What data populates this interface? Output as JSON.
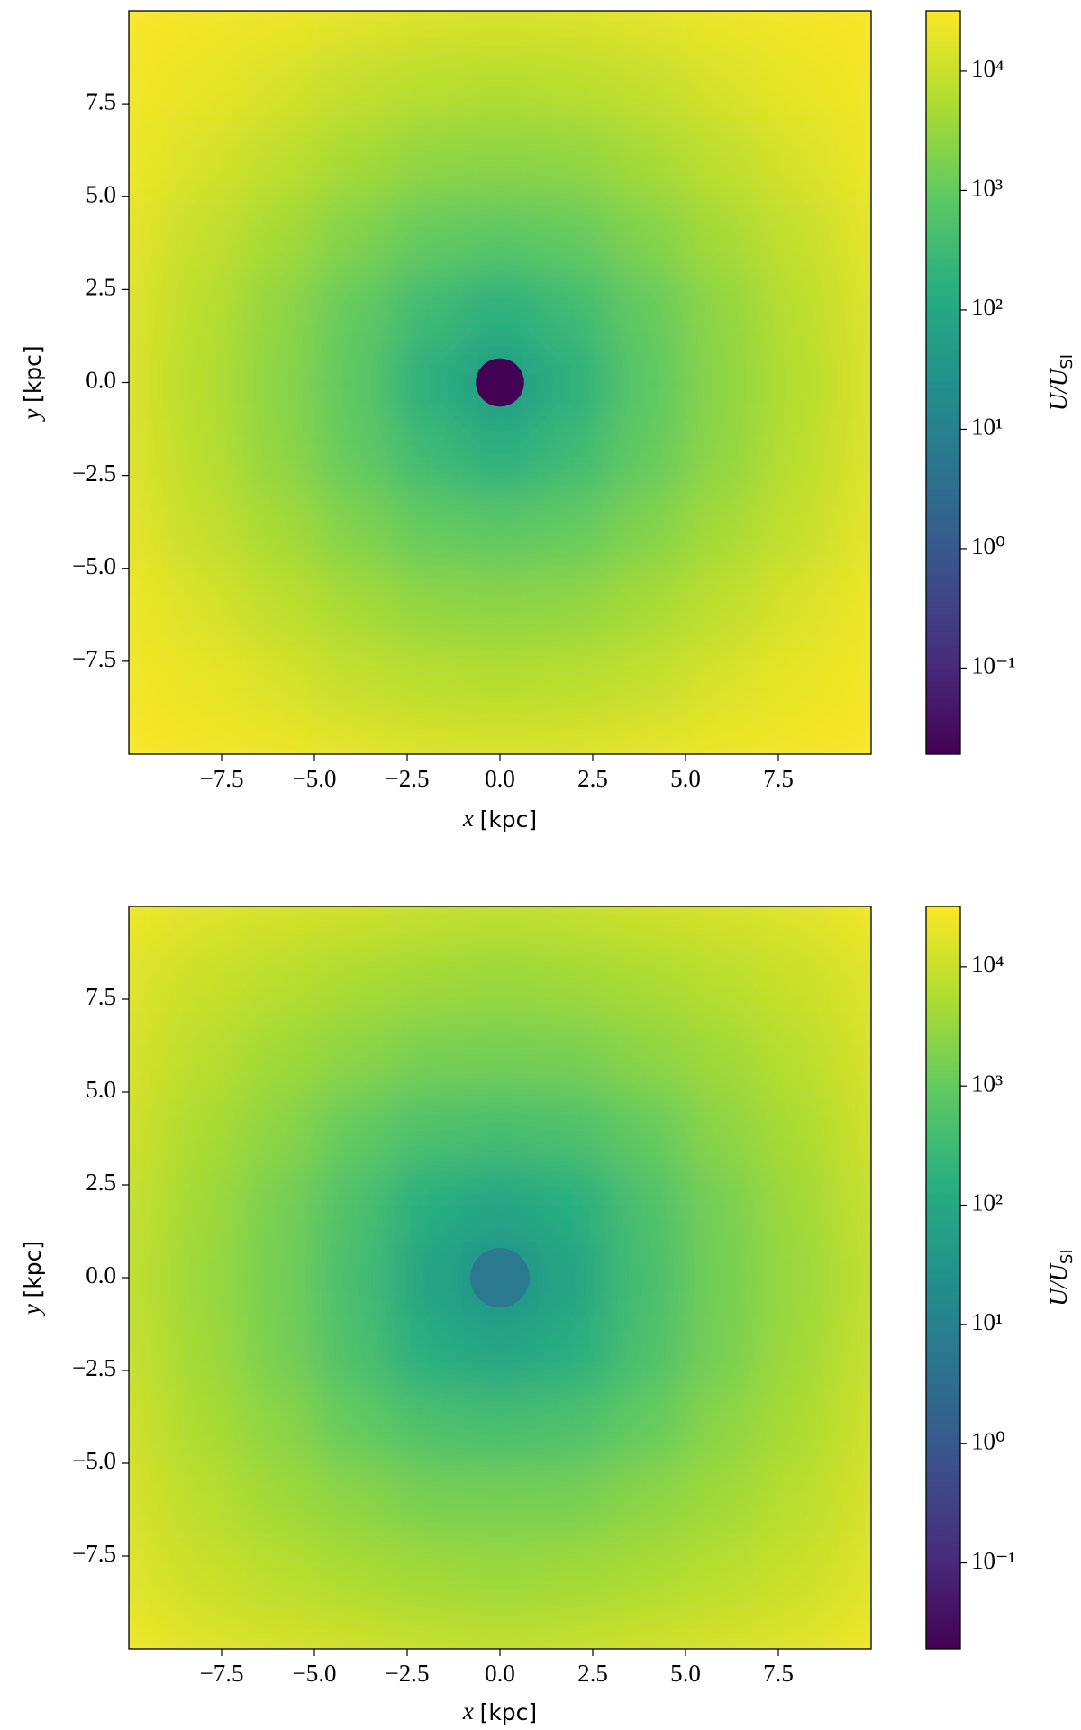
{
  "chart_data": [
    {
      "type": "heatmap",
      "x": [
        -10,
        -8,
        -6,
        -4,
        -2,
        0,
        2,
        4,
        6,
        8,
        10
      ],
      "y": [
        -10,
        -8,
        -6,
        -4,
        -2,
        0,
        2,
        4,
        6,
        8,
        10
      ],
      "values": [
        [
          28000,
          25000,
          22000,
          18000,
          15000,
          14000,
          15000,
          18000,
          22000,
          25000,
          28000
        ],
        [
          25000,
          20000,
          14000,
          9000,
          7000,
          6300,
          7000,
          9000,
          14000,
          20000,
          25000
        ],
        [
          22000,
          14000,
          8000,
          4500,
          2800,
          2500,
          2800,
          4500,
          8000,
          14000,
          22000
        ],
        [
          18000,
          9000,
          4500,
          2000,
          1000,
          800,
          1000,
          2000,
          4500,
          9000,
          18000
        ],
        [
          15000,
          7000,
          2800,
          1000,
          320,
          160,
          320,
          1000,
          2800,
          7000,
          15000
        ],
        [
          14000,
          6300,
          2500,
          800,
          160,
          50,
          160,
          800,
          2500,
          6300,
          14000
        ],
        [
          15000,
          7000,
          2800,
          1000,
          320,
          160,
          320,
          1000,
          2800,
          7000,
          15000
        ],
        [
          18000,
          9000,
          4500,
          2000,
          1000,
          800,
          1000,
          2000,
          4500,
          9000,
          18000
        ],
        [
          22000,
          14000,
          8000,
          4500,
          2800,
          2500,
          2800,
          4500,
          8000,
          14000,
          22000
        ],
        [
          25000,
          20000,
          14000,
          9000,
          7000,
          6300,
          7000,
          9000,
          14000,
          20000,
          25000
        ],
        [
          28000,
          25000,
          22000,
          18000,
          15000,
          14000,
          15000,
          18000,
          22000,
          25000,
          28000
        ]
      ],
      "core": {
        "x": 0,
        "y": 0,
        "radius": 0.65,
        "value": 0.02
      },
      "xlim": [
        -10,
        10
      ],
      "ylim": [
        -10,
        10
      ],
      "xticks": [
        {
          "value": -7.5,
          "label": "−7.5"
        },
        {
          "value": -5,
          "label": "−5.0"
        },
        {
          "value": -2.5,
          "label": "−2.5"
        },
        {
          "value": 0,
          "label": "0.0"
        },
        2.5,
        {
          "value": 5,
          "label": "5.0"
        },
        7.5
      ],
      "yticks": [
        {
          "value": -7.5,
          "label": "−7.5"
        },
        {
          "value": -5,
          "label": "−5.0"
        },
        {
          "value": -2.5,
          "label": "−2.5"
        },
        {
          "value": 0,
          "label": "0.0"
        },
        2.5,
        {
          "value": 5,
          "label": "5.0"
        },
        7.5
      ],
      "xlabel": {
        "var": "x",
        "unit": "[kpc]"
      },
      "ylabel": {
        "var": "y",
        "unit": "[kpc]"
      },
      "colorbar": {
        "label": {
          "main": "U/U",
          "sub": "SI"
        },
        "log": true,
        "colormap": "viridis",
        "clim": [
          0.019,
          32000
        ],
        "ticks": [
          {
            "value": 0.1,
            "label": "10⁻¹"
          },
          {
            "value": 1,
            "label": "10⁰"
          },
          {
            "value": 10,
            "label": "10¹"
          },
          {
            "value": 100,
            "label": "10²"
          },
          {
            "value": 1000,
            "label": "10³"
          },
          {
            "value": 10000,
            "label": "10⁴"
          }
        ]
      }
    },
    {
      "type": "heatmap",
      "x": [
        -10,
        -8,
        -6,
        -4,
        -2,
        0,
        2,
        4,
        6,
        8,
        10
      ],
      "y": [
        -10,
        -8,
        -6,
        -4,
        -2,
        0,
        2,
        4,
        6,
        8,
        10
      ],
      "values": [
        [
          22000,
          16000,
          13000,
          11000,
          9000,
          8000,
          9000,
          11000,
          13000,
          16000,
          22000
        ],
        [
          16000,
          10000,
          7000,
          5000,
          4000,
          3500,
          4000,
          5000,
          7000,
          10000,
          16000
        ],
        [
          13000,
          7000,
          4000,
          2500,
          1600,
          1500,
          1600,
          2500,
          4000,
          7000,
          13000
        ],
        [
          11000,
          5000,
          2500,
          1000,
          500,
          400,
          500,
          1000,
          2500,
          5000,
          11000
        ],
        [
          9000,
          4000,
          1600,
          500,
          150,
          80,
          150,
          500,
          1600,
          4000,
          9000
        ],
        [
          8000,
          3500,
          1500,
          400,
          80,
          25,
          80,
          400,
          1500,
          3500,
          8000
        ],
        [
          9000,
          4000,
          1600,
          500,
          150,
          80,
          150,
          500,
          1600,
          4000,
          9000
        ],
        [
          11000,
          5000,
          2500,
          1000,
          500,
          400,
          500,
          1000,
          2500,
          5000,
          11000
        ],
        [
          13000,
          7000,
          4000,
          2500,
          1600,
          1500,
          1600,
          2500,
          4000,
          7000,
          13000
        ],
        [
          16000,
          10000,
          7000,
          5000,
          4000,
          3500,
          4000,
          5000,
          7000,
          10000,
          16000
        ],
        [
          22000,
          16000,
          13000,
          11000,
          9000,
          8000,
          9000,
          11000,
          13000,
          16000,
          22000
        ]
      ],
      "core": {
        "x": 0,
        "y": 0,
        "radius": 0.8,
        "value": 6
      },
      "xlim": [
        -10,
        10
      ],
      "ylim": [
        -10,
        10
      ],
      "xticks": [
        {
          "value": -7.5,
          "label": "−7.5"
        },
        {
          "value": -5,
          "label": "−5.0"
        },
        {
          "value": -2.5,
          "label": "−2.5"
        },
        {
          "value": 0,
          "label": "0.0"
        },
        2.5,
        {
          "value": 5,
          "label": "5.0"
        },
        7.5
      ],
      "yticks": [
        {
          "value": -7.5,
          "label": "−7.5"
        },
        {
          "value": -5,
          "label": "−5.0"
        },
        {
          "value": -2.5,
          "label": "−2.5"
        },
        {
          "value": 0,
          "label": "0.0"
        },
        2.5,
        {
          "value": 5,
          "label": "5.0"
        },
        7.5
      ],
      "xlabel": {
        "var": "x",
        "unit": "[kpc]"
      },
      "ylabel": {
        "var": "y",
        "unit": "[kpc]"
      },
      "colorbar": {
        "label": {
          "main": "U/U",
          "sub": "SI"
        },
        "log": true,
        "colormap": "viridis",
        "clim": [
          0.019,
          32000
        ],
        "ticks": [
          {
            "value": 0.1,
            "label": "10⁻¹"
          },
          {
            "value": 1,
            "label": "10⁰"
          },
          {
            "value": 10,
            "label": "10¹"
          },
          {
            "value": 100,
            "label": "10²"
          },
          {
            "value": 1000,
            "label": "10³"
          },
          {
            "value": 10000,
            "label": "10⁴"
          }
        ]
      }
    }
  ]
}
